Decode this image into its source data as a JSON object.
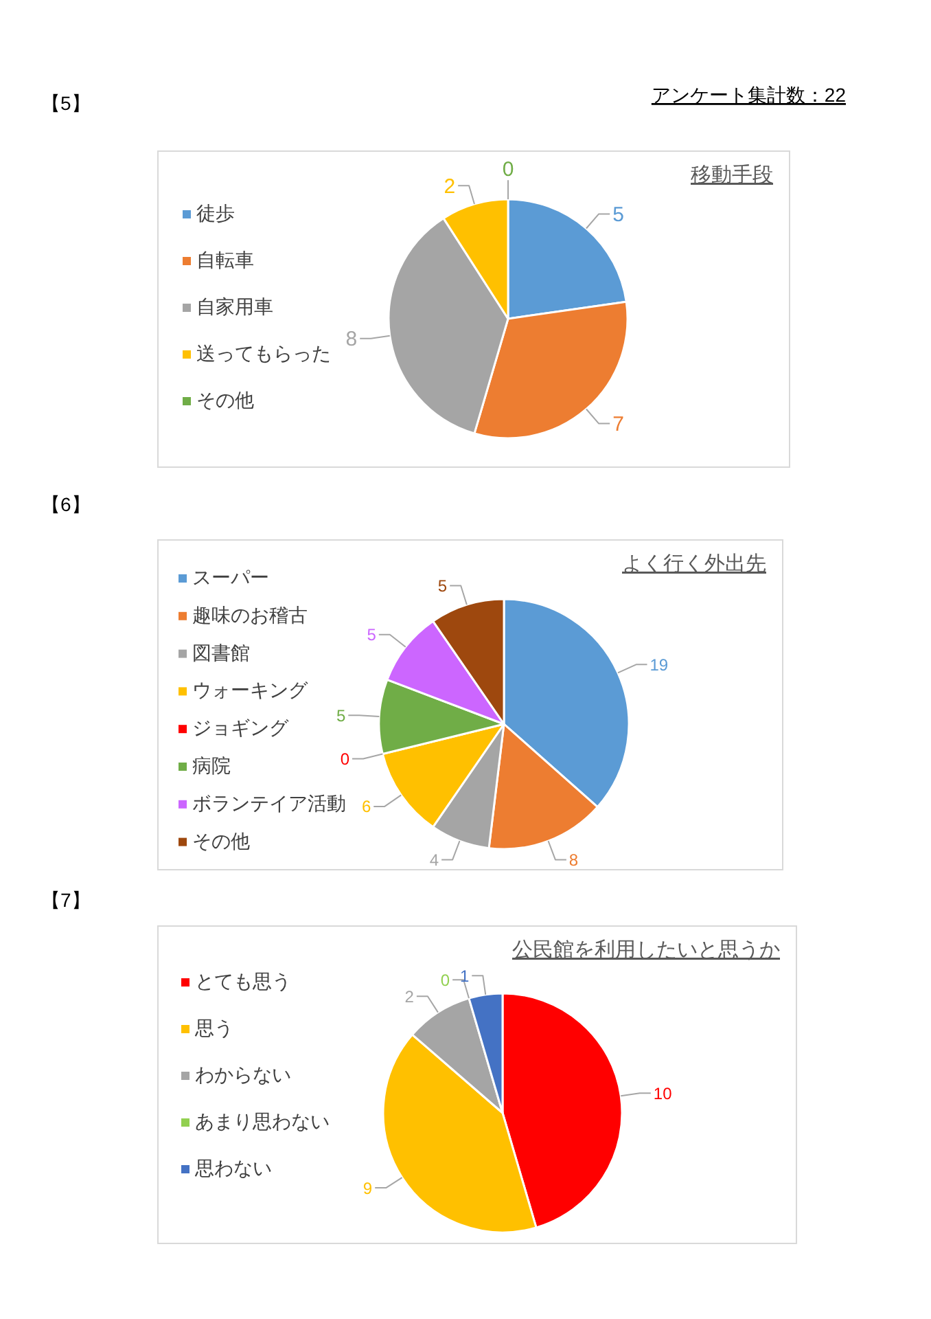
{
  "chart_data": [
    {
      "type": "pie",
      "title": "移動手段",
      "categories": [
        "徒歩",
        "自転車",
        "自家用車",
        "送ってもらった",
        "その他"
      ],
      "values": [
        5,
        7,
        8,
        2,
        0
      ],
      "value_labels": [
        "5",
        "7",
        "8",
        "2",
        "0"
      ],
      "colors": [
        "#5b9bd5",
        "#ed7d31",
        "#a5a5a5",
        "#ffc000",
        "#70ad47"
      ],
      "legend": "left",
      "annotations": [
        "【5】",
        "アンケート集計数：22"
      ]
    },
    {
      "type": "pie",
      "title": "よく行く外出先",
      "categories": [
        "スーパー",
        "趣味のお稽古",
        "図書館",
        "ウォーキング",
        "ジョギング",
        "病院",
        "ボランテイア活動",
        "その他"
      ],
      "values": [
        19,
        8,
        4,
        6,
        0,
        5,
        5,
        5
      ],
      "value_labels": [
        "19",
        "8",
        "4",
        "6",
        "0",
        "5",
        "5",
        "5"
      ],
      "colors": [
        "#5b9bd5",
        "#ed7d31",
        "#a5a5a5",
        "#ffc000",
        "#ff0000",
        "#70ad47",
        "#cc66ff",
        "#9e480e"
      ],
      "legend": "left",
      "annotations": [
        "【6】"
      ]
    },
    {
      "type": "pie",
      "title": "公民館を利用したいと思うか",
      "categories": [
        "とても思う",
        "思う",
        "わからない",
        "あまり思わない",
        "思わない"
      ],
      "values": [
        10,
        9,
        2,
        0,
        1
      ],
      "value_labels": [
        "10",
        "9",
        "2",
        "0",
        "1"
      ],
      "colors": [
        "#ff0000",
        "#ffc000",
        "#a5a5a5",
        "#92d050",
        "#4472c4"
      ],
      "legend": "left",
      "annotations": [
        "【7】"
      ]
    }
  ]
}
